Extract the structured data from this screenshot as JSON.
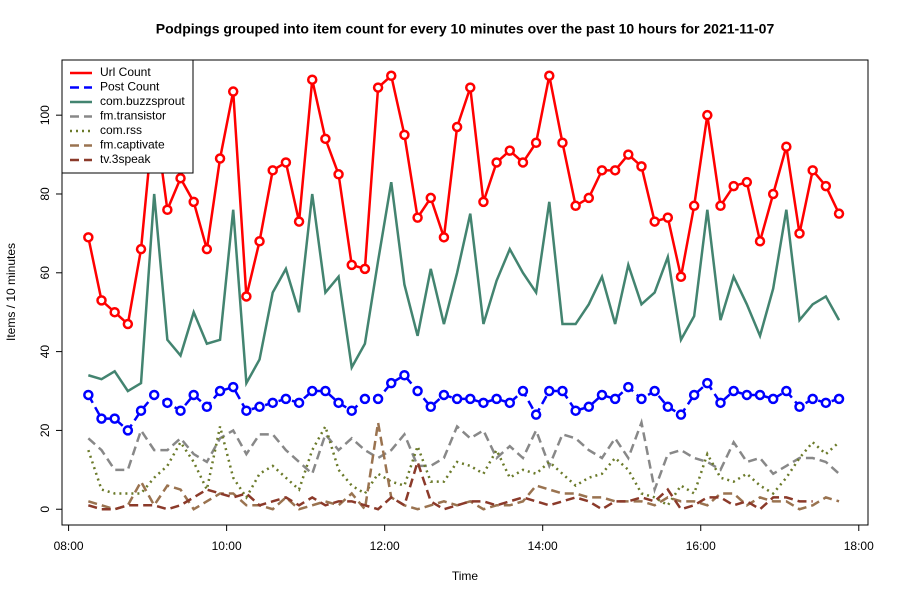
{
  "chart_data": {
    "type": "line",
    "title": "Podpings grouped into item count for every 10 minutes  over the past 10 hours for 2021-11-07",
    "xlabel": "Time",
    "ylabel": "Items / 10 minutes",
    "x": [
      "08:15",
      "08:25",
      "08:35",
      "08:45",
      "08:55",
      "09:05",
      "09:15",
      "09:25",
      "09:35",
      "09:45",
      "09:55",
      "10:05",
      "10:15",
      "10:25",
      "10:35",
      "10:45",
      "10:55",
      "11:05",
      "11:15",
      "11:25",
      "11:35",
      "11:45",
      "11:55",
      "12:05",
      "12:15",
      "12:25",
      "12:35",
      "12:45",
      "12:55",
      "13:05",
      "13:15",
      "13:25",
      "13:35",
      "13:45",
      "13:55",
      "14:05",
      "14:15",
      "14:25",
      "14:35",
      "14:45",
      "14:55",
      "15:05",
      "15:15",
      "15:25",
      "15:35",
      "15:45",
      "15:55",
      "16:05",
      "16:15",
      "16:25",
      "16:35",
      "16:45",
      "16:55",
      "17:05",
      "17:15",
      "17:25",
      "17:35",
      "17:45"
    ],
    "xlim": [
      "07:55",
      "18:07"
    ],
    "xticks": [
      "08:00",
      "10:00",
      "12:00",
      "14:00",
      "16:00",
      "18:00"
    ],
    "ylim": [
      -4,
      114
    ],
    "yticks": [
      0,
      20,
      40,
      60,
      80,
      100
    ],
    "legend": "upper left",
    "series": [
      {
        "name": "Url Count",
        "color": "#ff0000",
        "dash": "solid",
        "markers": true,
        "values": [
          69,
          53,
          50,
          47,
          66,
          101,
          76,
          84,
          78,
          66,
          89,
          106,
          54,
          68,
          86,
          88,
          73,
          109,
          94,
          85,
          62,
          61,
          107,
          110,
          95,
          74,
          79,
          69,
          97,
          107,
          78,
          88,
          91,
          88,
          93,
          110,
          93,
          77,
          79,
          86,
          86,
          90,
          87,
          73,
          74,
          59,
          77,
          100,
          77,
          82,
          83,
          68,
          80,
          92,
          70,
          86,
          82,
          75
        ]
      },
      {
        "name": "Post Count",
        "color": "#0000ff",
        "dash": "dashed",
        "markers": true,
        "values": [
          29,
          23,
          23,
          20,
          25,
          29,
          27,
          25,
          29,
          26,
          30,
          31,
          25,
          26,
          27,
          28,
          27,
          30,
          30,
          27,
          25,
          28,
          28,
          32,
          34,
          30,
          26,
          29,
          28,
          28,
          27,
          28,
          27,
          30,
          24,
          30,
          30,
          25,
          26,
          29,
          28,
          31,
          28,
          30,
          26,
          24,
          29,
          32,
          27,
          30,
          29,
          29,
          28,
          30,
          26,
          28,
          27,
          28
        ]
      },
      {
        "name": "com.buzzsprout",
        "color": "#438470",
        "dash": "solid",
        "markers": false,
        "values": [
          34,
          33,
          35,
          30,
          32,
          80,
          43,
          39,
          50,
          42,
          43,
          76,
          32,
          38,
          55,
          61,
          50,
          80,
          55,
          59,
          36,
          42,
          63,
          83,
          57,
          44,
          61,
          47,
          60,
          75,
          47,
          58,
          66,
          60,
          55,
          78,
          47,
          47,
          52,
          59,
          47,
          62,
          52,
          55,
          64,
          43,
          49,
          76,
          48,
          59,
          52,
          44,
          56,
          76,
          48,
          52,
          54,
          48
        ]
      },
      {
        "name": "fm.transistor",
        "color": "#888888",
        "dash": "dashed",
        "markers": false,
        "values": [
          18,
          15,
          10,
          10,
          20,
          15,
          15,
          18,
          14,
          12,
          18,
          20,
          14,
          19,
          19,
          15,
          12,
          9,
          19,
          15,
          18,
          15,
          13,
          15,
          19,
          11,
          11,
          13,
          21,
          18,
          20,
          13,
          16,
          13,
          20,
          11,
          19,
          18,
          15,
          13,
          18,
          13,
          22,
          5,
          14,
          15,
          13,
          12,
          10,
          17,
          12,
          13,
          9,
          11,
          13,
          13,
          12,
          9
        ]
      },
      {
        "name": "com.rss",
        "color": "#6b7a2a",
        "dash": "dotted",
        "markers": false,
        "values": [
          15,
          5,
          4,
          4,
          4,
          8,
          11,
          17,
          12,
          5,
          21,
          8,
          3,
          9,
          11,
          8,
          5,
          15,
          21,
          10,
          6,
          4,
          9,
          7,
          6,
          16,
          7,
          7,
          12,
          11,
          9,
          15,
          8,
          10,
          9,
          12,
          9,
          6,
          8,
          9,
          13,
          10,
          4,
          3,
          1,
          6,
          4,
          14,
          8,
          7,
          9,
          6,
          4,
          8,
          13,
          17,
          14,
          17
        ]
      },
      {
        "name": "fm.captivate",
        "color": "#9a7350",
        "dash": "dashed",
        "markers": false,
        "values": [
          2,
          1,
          0,
          1,
          7,
          1,
          6,
          5,
          0,
          2,
          4,
          4,
          1,
          1,
          0,
          3,
          0,
          1,
          2,
          1,
          4,
          0,
          22,
          3,
          1,
          0,
          1,
          2,
          1,
          2,
          0,
          1,
          1,
          2,
          6,
          5,
          4,
          4,
          3,
          3,
          2,
          2,
          2,
          1,
          3,
          2,
          2,
          1,
          4,
          4,
          1,
          3,
          2,
          2,
          0,
          1,
          3,
          2
        ]
      },
      {
        "name": "tv.3speak",
        "color": "#8b3a2a",
        "dash": "dashed",
        "markers": false,
        "values": [
          1,
          0,
          0,
          1,
          1,
          1,
          0,
          1,
          3,
          5,
          4,
          3,
          4,
          1,
          2,
          3,
          1,
          3,
          1,
          2,
          2,
          1,
          0,
          3,
          1,
          12,
          2,
          0,
          1,
          2,
          2,
          1,
          2,
          3,
          2,
          1,
          2,
          3,
          2,
          0,
          2,
          2,
          3,
          2,
          5,
          0,
          1,
          3,
          3,
          1,
          2,
          0,
          3,
          3,
          2,
          2,
          null,
          null
        ]
      }
    ]
  }
}
